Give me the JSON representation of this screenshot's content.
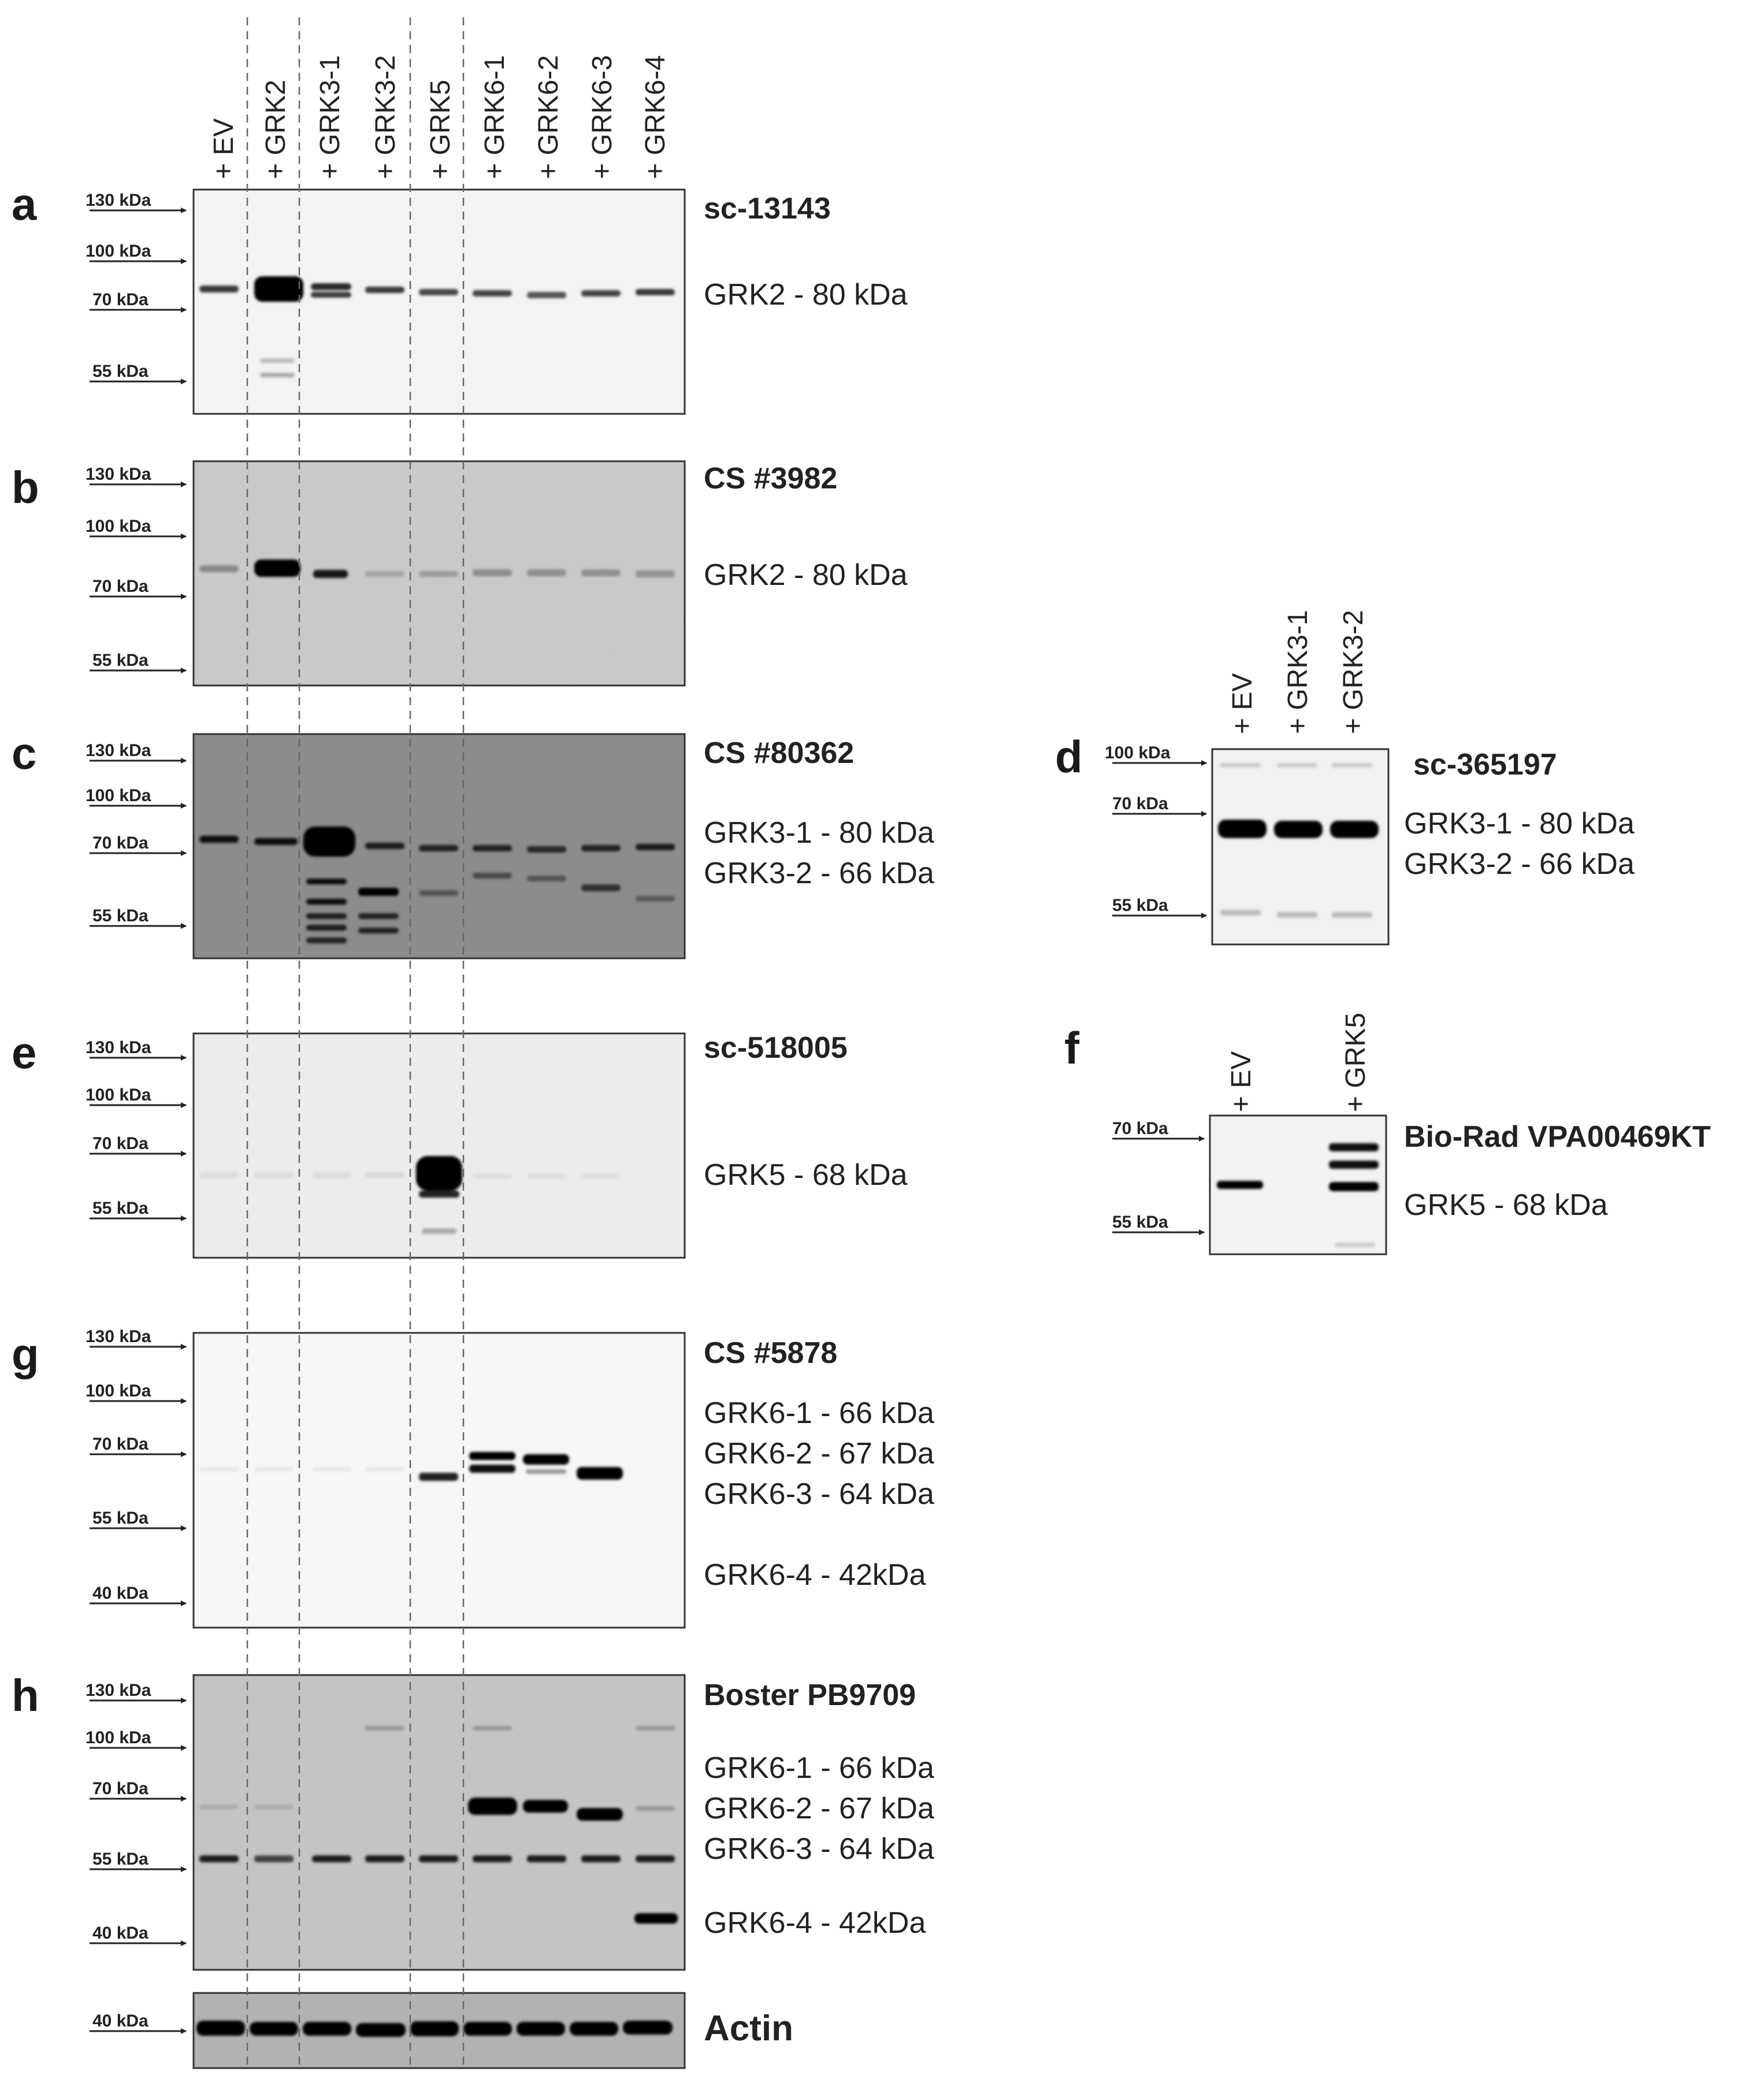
{
  "lanes": [
    "+ EV",
    "+ GRK2",
    "+ GRK3-1",
    "+ GRK3-2",
    "+ GRK5",
    "+ GRK6-1",
    "+ GRK6-2",
    "+ GRK6-3",
    "+ GRK6-4"
  ],
  "blots": [
    {
      "letter": "a",
      "antibody": "sc-13143",
      "background": "#f3f3f3",
      "markers": [
        "130 kDa",
        "100 kDa",
        "70 kDa",
        "55 kDa"
      ],
      "proteins": [
        "GRK2 - 80 kDa"
      ]
    },
    {
      "letter": "b",
      "antibody": "CS #3982",
      "background": "#cacaca",
      "markers": [
        "130 kDa",
        "100 kDa",
        "70 kDa",
        "55 kDa"
      ],
      "proteins": [
        "GRK2 - 80 kDa"
      ]
    },
    {
      "letter": "c",
      "antibody": "CS #80362",
      "background": "#8c8c8c",
      "markers": [
        "130 kDa",
        "100 kDa",
        "70 kDa",
        "55 kDa"
      ],
      "proteins": [
        "GRK3-1 - 80 kDa",
        "GRK3-2 - 66 kDa"
      ]
    },
    {
      "letter": "e",
      "antibody": "sc-518005",
      "background": "#ececec",
      "markers": [
        "130 kDa",
        "100 kDa",
        "70 kDa",
        "55 kDa"
      ],
      "proteins": [
        "GRK5 - 68 kDa"
      ]
    },
    {
      "letter": "g",
      "antibody": "CS #5878",
      "background": "#f6f6f6",
      "markers": [
        "130 kDa",
        "100 kDa",
        "70 kDa",
        "55 kDa",
        "40 kDa"
      ],
      "proteins": [
        "GRK6-1 - 66 kDa",
        "GRK6-2 - 67 kDa",
        "GRK6-3 - 64 kDa",
        "GRK6-4 - 42kDa"
      ]
    },
    {
      "letter": "h",
      "antibody": "Boster PB9709",
      "background": "#c4c4c4",
      "markers": [
        "130 kDa",
        "100 kDa",
        "70 kDa",
        "55 kDa",
        "40 kDa"
      ],
      "proteins": [
        "GRK6-1 - 66 kDa",
        "GRK6-2 - 67 kDa",
        "GRK6-3 - 64 kDa",
        "GRK6-4 - 42kDa"
      ]
    },
    {
      "letter": "",
      "antibody": "Actin",
      "background": "#b2b2b2",
      "markers": [
        "40 kDa"
      ],
      "proteins": []
    }
  ],
  "side_blots": [
    {
      "letter": "d",
      "antibody": "sc-365197",
      "background": "#f1f1f1",
      "lanes": [
        "+ EV",
        "+ GRK3-1",
        "+ GRK3-2"
      ],
      "markers": [
        "100 kDa",
        "70 kDa",
        "55 kDa"
      ],
      "proteins": [
        "GRK3-1 - 80 kDa",
        "GRK3-2 - 66 kDa"
      ]
    },
    {
      "letter": "f",
      "antibody": "Bio-Rad VPA00469KT",
      "background": "#f2f2f2",
      "lanes": [
        "+ EV",
        "+ GRK5"
      ],
      "markers": [
        "70 kDa",
        "55 kDa"
      ],
      "proteins": [
        "GRK5 - 68 kDa"
      ]
    }
  ]
}
